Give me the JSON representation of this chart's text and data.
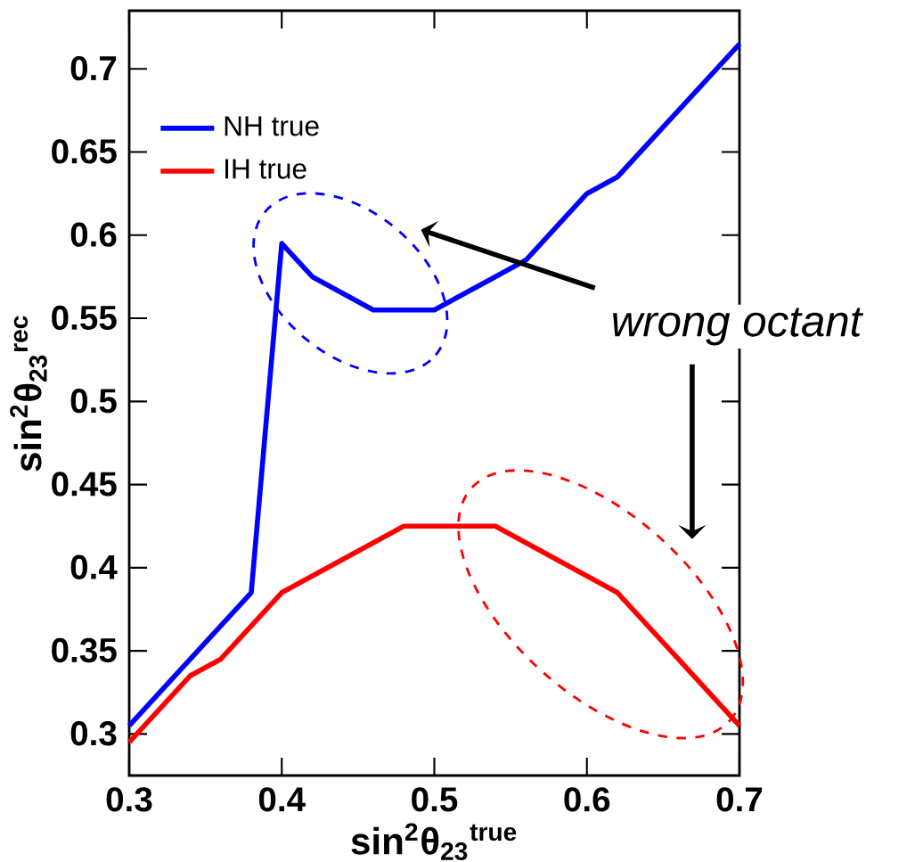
{
  "chart_data": {
    "type": "line",
    "xlabel": "sin$^{2}$θ$_{23}$$^{true}$",
    "ylabel": "sin$^{2}$θ$_{23}$$^{rec}$",
    "series": [
      {
        "name": "NH true",
        "color": "#0000ff",
        "x": [
          0.3,
          0.38,
          0.4,
          0.42,
          0.46,
          0.5,
          0.54,
          0.56,
          0.6,
          0.62,
          0.7
        ],
        "values": [
          0.305,
          0.385,
          0.595,
          0.575,
          0.555,
          0.555,
          0.575,
          0.585,
          0.625,
          0.635,
          0.715
        ]
      },
      {
        "name": "IH true",
        "color": "#ff0000",
        "x": [
          0.3,
          0.34,
          0.36,
          0.4,
          0.48,
          0.54,
          0.62,
          0.7
        ],
        "values": [
          0.295,
          0.335,
          0.345,
          0.385,
          0.425,
          0.425,
          0.385,
          0.305
        ]
      }
    ],
    "xlim": [
      0.3,
      0.7
    ],
    "ylim": [
      0.275,
      0.735
    ],
    "xticks": [
      0.3,
      0.4,
      0.5,
      0.6,
      0.7
    ],
    "yticks": [
      0.3,
      0.35,
      0.4,
      0.45,
      0.5,
      0.55,
      0.6,
      0.65,
      0.7
    ],
    "annotations": [
      "wrong octant"
    ],
    "legend": "top left",
    "grid": false
  }
}
